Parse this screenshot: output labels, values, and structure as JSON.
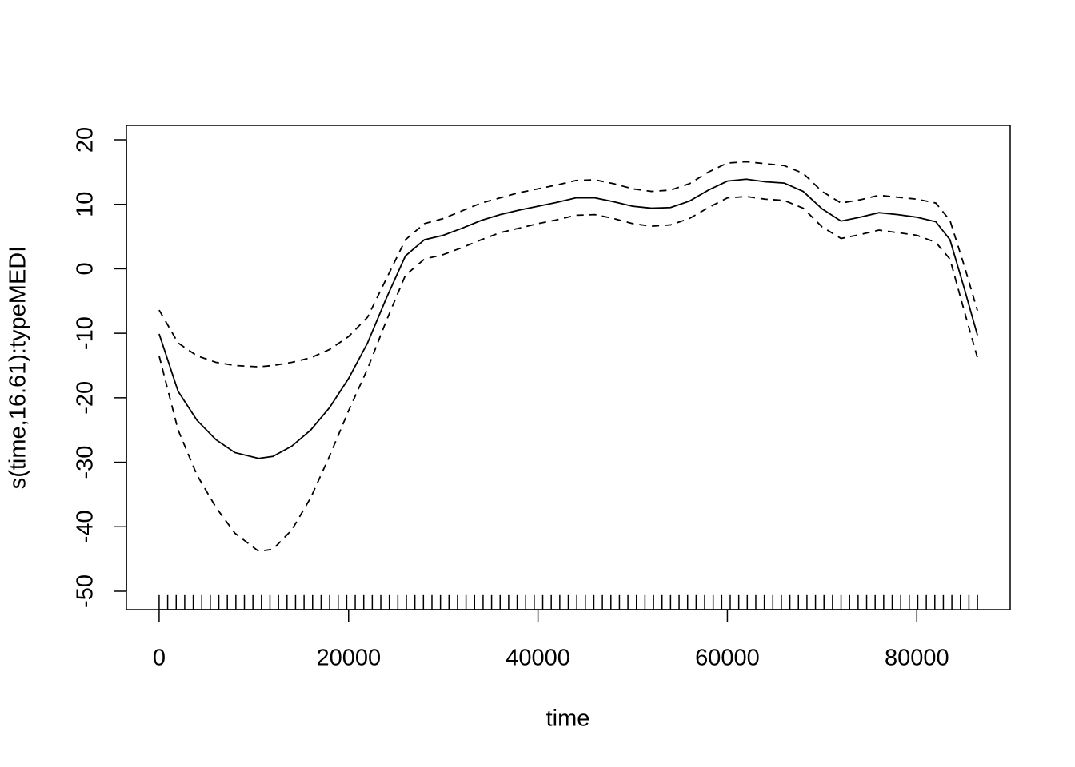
{
  "chart_data": {
    "type": "line",
    "xlabel": "time",
    "ylabel": "s(time,16.61):typeMEDI",
    "x": [
      0,
      2000,
      4000,
      6000,
      8000,
      10500,
      12000,
      14000,
      16000,
      18000,
      20000,
      22000,
      24000,
      26000,
      28000,
      30000,
      32000,
      34000,
      36000,
      38000,
      40000,
      42000,
      44000,
      46000,
      48000,
      50000,
      52000,
      54000,
      56000,
      58000,
      60000,
      62000,
      64000,
      66000,
      68000,
      70000,
      72000,
      74000,
      76000,
      78000,
      80000,
      82000,
      83500,
      85000,
      86400
    ],
    "series": [
      {
        "color": "#000000",
        "dash": "solid",
        "values": [
          -10.1,
          -19,
          -23.5,
          -26.5,
          -28.5,
          -29.4,
          -29.1,
          -27.5,
          -25,
          -21.5,
          -17,
          -11.5,
          -4.5,
          2,
          4.5,
          5.2,
          6.3,
          7.5,
          8.4,
          9.1,
          9.7,
          10.3,
          11,
          11,
          10.4,
          9.7,
          9.4,
          9.5,
          10.5,
          12.2,
          13.6,
          13.9,
          13.5,
          13.3,
          12,
          9.3,
          7.4,
          8,
          8.7,
          8.4,
          8,
          7.3,
          4.5,
          -3,
          -10.3
        ]
      },
      {
        "color": "#000000",
        "dash": "dashed",
        "values": [
          -6.4,
          -11.5,
          -13.5,
          -14.5,
          -15,
          -15.2,
          -15,
          -14.5,
          -13.8,
          -12.5,
          -10.5,
          -7.5,
          -1.5,
          4.5,
          7,
          7.8,
          9,
          10.2,
          11,
          11.8,
          12.4,
          13,
          13.7,
          13.8,
          13.2,
          12.4,
          12,
          12.2,
          13.2,
          15,
          16.4,
          16.6,
          16.3,
          16,
          14.8,
          12,
          10.2,
          10.7,
          11.4,
          11.1,
          10.8,
          10.2,
          7.5,
          0.5,
          -6.5
        ]
      },
      {
        "color": "#000000",
        "dash": "dashed",
        "values": [
          -13.5,
          -25,
          -32,
          -37,
          -41,
          -43.8,
          -43.5,
          -40.5,
          -35.5,
          -29,
          -22,
          -15.5,
          -8,
          -1,
          1.5,
          2.2,
          3.3,
          4.5,
          5.6,
          6.3,
          7,
          7.6,
          8.3,
          8.4,
          7.8,
          7,
          6.6,
          6.8,
          7.8,
          9.5,
          11,
          11.2,
          10.8,
          10.6,
          9.4,
          6.5,
          4.7,
          5.3,
          6,
          5.6,
          5.2,
          4.1,
          1.5,
          -6.5,
          -13.8
        ]
      }
    ],
    "rug": [
      0,
      900,
      1800,
      2700,
      3600,
      4500,
      5400,
      6300,
      7200,
      8100,
      9000,
      9900,
      10800,
      11700,
      12600,
      13500,
      14400,
      15300,
      16200,
      17100,
      18000,
      18900,
      19800,
      20700,
      21600,
      22500,
      23400,
      24300,
      25200,
      26100,
      27000,
      27900,
      28800,
      29700,
      30600,
      31500,
      32400,
      33300,
      34200,
      35100,
      36000,
      36900,
      37800,
      38700,
      39600,
      40500,
      41400,
      42300,
      43200,
      44100,
      45000,
      45900,
      46800,
      47700,
      48600,
      49500,
      50400,
      51300,
      52200,
      53100,
      54000,
      54900,
      55800,
      56700,
      57600,
      58500,
      59400,
      60300,
      61200,
      62100,
      63000,
      63900,
      64800,
      65700,
      66600,
      67500,
      68400,
      69300,
      70200,
      71100,
      72000,
      72900,
      73800,
      74700,
      75600,
      76500,
      77400,
      78300,
      79200,
      80100,
      81000,
      81900,
      82800,
      83700,
      84600,
      85500,
      86400
    ],
    "xlim": [
      -3456,
      89856
    ],
    "xticks": [
      0,
      20000,
      40000,
      60000,
      80000
    ],
    "ylim": [
      -52.85,
      22.23
    ],
    "yticks": [
      -50,
      -40,
      -30,
      -20,
      -10,
      0,
      10,
      20
    ]
  }
}
